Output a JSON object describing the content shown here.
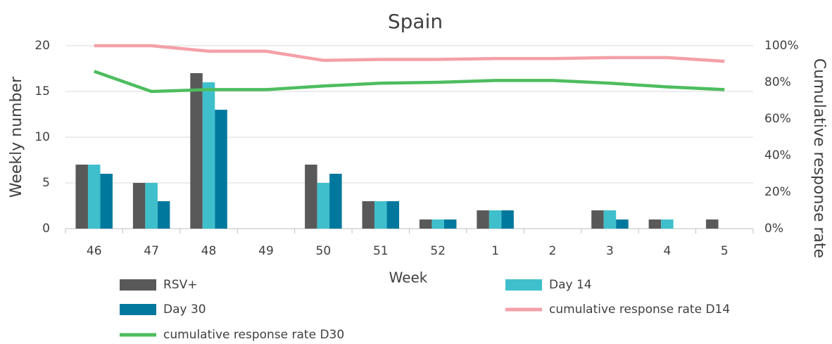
{
  "chart_data": {
    "type": "bar_line",
    "title": "Spain",
    "x_label": "Week",
    "y_label": "Weekly number",
    "y2_label": "Cumulative response rate",
    "categories": [
      "46",
      "47",
      "48",
      "49",
      "50",
      "51",
      "52",
      "1",
      "2",
      "3",
      "4",
      "5"
    ],
    "series": [
      {
        "name": "RSV+",
        "type": "bar",
        "color": "#595959",
        "values": [
          7,
          5,
          17,
          0,
          7,
          3,
          1,
          2,
          0,
          2,
          1,
          1
        ]
      },
      {
        "name": "Day 14",
        "type": "bar",
        "color": "#3fbfcc",
        "values": [
          7,
          5,
          16,
          0,
          5,
          3,
          1,
          2,
          0,
          2,
          1,
          0
        ]
      },
      {
        "name": "Day 30",
        "type": "bar",
        "color": "#00789e",
        "values": [
          6,
          3,
          13,
          0,
          6,
          3,
          1,
          2,
          0,
          1,
          0,
          0
        ]
      },
      {
        "name": "cumulative response rate D14",
        "type": "line",
        "axis": "y2",
        "color": "#f4a0a8",
        "values": [
          100,
          100,
          97,
          97,
          92,
          92.5,
          92.5,
          93,
          93,
          93.5,
          93.5,
          91.5
        ]
      },
      {
        "name": "cumulative response rate D30",
        "type": "line",
        "axis": "y2",
        "color": "#4dbd5e",
        "values": [
          86,
          75,
          76,
          76,
          78,
          79.5,
          80,
          81,
          81,
          79.5,
          77.5,
          76
        ]
      }
    ],
    "ylim": [
      0,
      20
    ],
    "yticks": [
      0,
      5,
      10,
      15,
      20
    ],
    "y2lim": [
      0,
      100
    ],
    "y2ticks": [
      {
        "value": 0,
        "label": "0%"
      },
      {
        "value": 20,
        "label": "20%"
      },
      {
        "value": 40,
        "label": "40%"
      },
      {
        "value": 60,
        "label": "60%"
      },
      {
        "value": 80,
        "label": "80%"
      },
      {
        "value": 100,
        "label": "100%"
      }
    ],
    "grid": true
  }
}
